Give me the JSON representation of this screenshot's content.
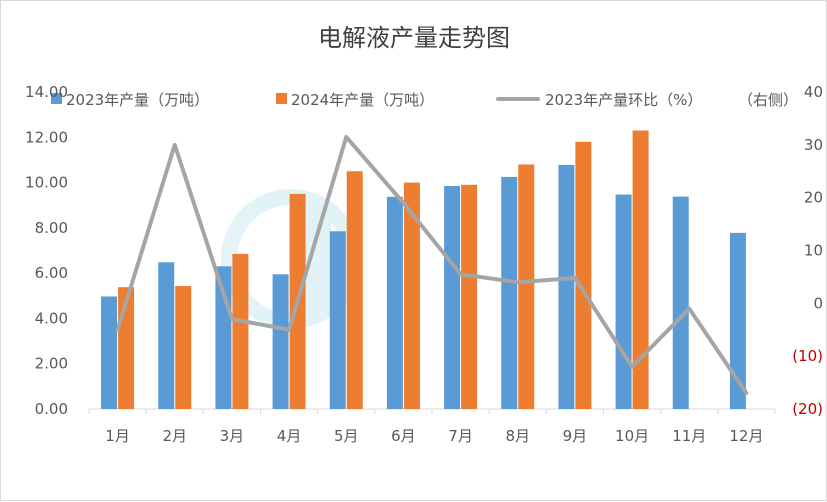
{
  "chart_data": {
    "type": "bar",
    "title": "电解液产量走势图",
    "categories": [
      "1月",
      "2月",
      "3月",
      "4月",
      "5月",
      "6月",
      "7月",
      "8月",
      "9月",
      "10月",
      "11月",
      "12月"
    ],
    "series": [
      {
        "name": "2023年产量（万吨）",
        "type": "bar",
        "axis": "left",
        "color": "#5b9bd5",
        "values": [
          4.97,
          6.48,
          6.3,
          5.95,
          7.85,
          9.37,
          9.85,
          10.25,
          10.78,
          9.47,
          9.38,
          7.78
        ]
      },
      {
        "name": "2024年产量（万吨）",
        "type": "bar",
        "axis": "left",
        "color": "#ed7d31",
        "values": [
          5.38,
          5.43,
          6.85,
          9.5,
          10.5,
          10.0,
          9.9,
          10.8,
          11.8,
          12.3,
          null,
          null
        ]
      },
      {
        "name": "2023年产量环比（%）",
        "type": "line",
        "axis": "right",
        "color": "#a5a5a5",
        "values": [
          -5,
          30,
          -3,
          -5,
          31.5,
          19,
          5.5,
          4,
          4.8,
          -12,
          -1,
          -17
        ]
      }
    ],
    "y_left": {
      "min": 0,
      "max": 14,
      "step": 2,
      "tick_labels": [
        "0.00",
        "2.00",
        "4.00",
        "6.00",
        "8.00",
        "10.00",
        "12.00",
        "14.00"
      ]
    },
    "y_right": {
      "label": "（右侧）",
      "min": -20,
      "max": 40,
      "step": 10,
      "tick_labels": [
        "(20)",
        "(10)",
        "0",
        "10",
        "20",
        "30",
        "40"
      ]
    },
    "grid": false,
    "legend_position": "top"
  }
}
